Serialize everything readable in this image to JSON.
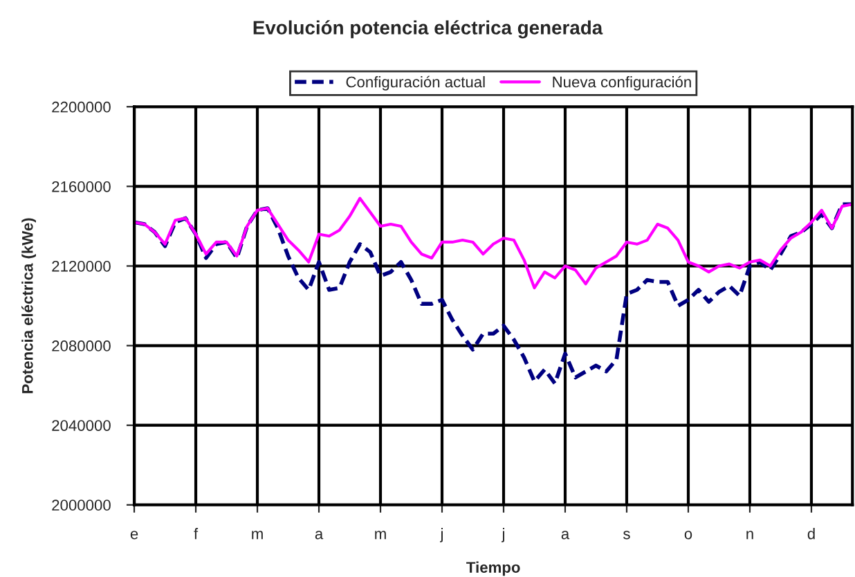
{
  "chart_data": {
    "type": "line",
    "title": "Evolución potencia eléctrica generada",
    "xlabel": "Tiempo",
    "ylabel": "Potencia eléctrica (kWe)",
    "categories": [
      "e",
      null,
      null,
      null,
      null,
      null,
      "f",
      null,
      null,
      null,
      null,
      null,
      "m",
      null,
      null,
      null,
      null,
      null,
      "a",
      null,
      null,
      null,
      null,
      null,
      "m",
      null,
      null,
      null,
      null,
      null,
      "j",
      null,
      null,
      null,
      null,
      null,
      "j",
      null,
      null,
      null,
      null,
      null,
      "a",
      null,
      null,
      null,
      null,
      null,
      "s",
      null,
      null,
      null,
      null,
      null,
      "o",
      null,
      null,
      null,
      null,
      null,
      "n",
      null,
      null,
      null,
      null,
      null,
      "d",
      null,
      null,
      null,
      null
    ],
    "ylim": [
      2000000,
      2200000
    ],
    "yticks": [
      2000000,
      2040000,
      2080000,
      2120000,
      2160000,
      2200000
    ],
    "grid": true,
    "legend": "top",
    "marker": "none",
    "series": [
      {
        "name": "Configuración actual",
        "color": "#000080",
        "line_style": "dashed",
        "values": [
          2142000,
          2141000,
          2137000,
          2130000,
          2142000,
          2144000,
          2136000,
          2124000,
          2131000,
          2132000,
          2124000,
          2140000,
          2148000,
          2149000,
          2139000,
          2125000,
          2114000,
          2108000,
          2122000,
          2108000,
          2109000,
          2122000,
          2131000,
          2127000,
          2115000,
          2117000,
          2122000,
          2113000,
          2101000,
          2101000,
          2103000,
          2093000,
          2085000,
          2078000,
          2086000,
          2086000,
          2090000,
          2083000,
          2074000,
          2062000,
          2068000,
          2061000,
          2076000,
          2064000,
          2067000,
          2070000,
          2067000,
          2073000,
          2106000,
          2108000,
          2113000,
          2112000,
          2112000,
          2100000,
          2103000,
          2108000,
          2102000,
          2107000,
          2110000,
          2105000,
          2120000,
          2122000,
          2118000,
          2126000,
          2135000,
          2137000,
          2141000,
          2146000,
          2139000,
          2151000,
          2151000
        ]
      },
      {
        "name": "Nueva configuración",
        "color": "#ff00ff",
        "line_style": "solid",
        "values": [
          2142000,
          2141000,
          2137000,
          2131000,
          2143000,
          2144000,
          2136000,
          2126000,
          2132000,
          2132000,
          2125000,
          2140000,
          2148000,
          2149000,
          2141000,
          2133000,
          2128000,
          2122000,
          2136000,
          2135000,
          2138000,
          2145000,
          2154000,
          2147000,
          2140000,
          2141000,
          2140000,
          2132000,
          2126000,
          2124000,
          2132000,
          2132000,
          2133000,
          2132000,
          2126000,
          2131000,
          2134000,
          2133000,
          2123000,
          2109000,
          2117000,
          2114000,
          2120000,
          2118000,
          2111000,
          2119000,
          2122000,
          2125000,
          2132000,
          2131000,
          2133000,
          2141000,
          2139000,
          2133000,
          2122000,
          2120000,
          2117000,
          2120000,
          2121000,
          2119000,
          2122000,
          2123000,
          2120000,
          2128000,
          2134000,
          2137000,
          2142000,
          2148000,
          2139000,
          2150000,
          2151000
        ]
      }
    ]
  }
}
